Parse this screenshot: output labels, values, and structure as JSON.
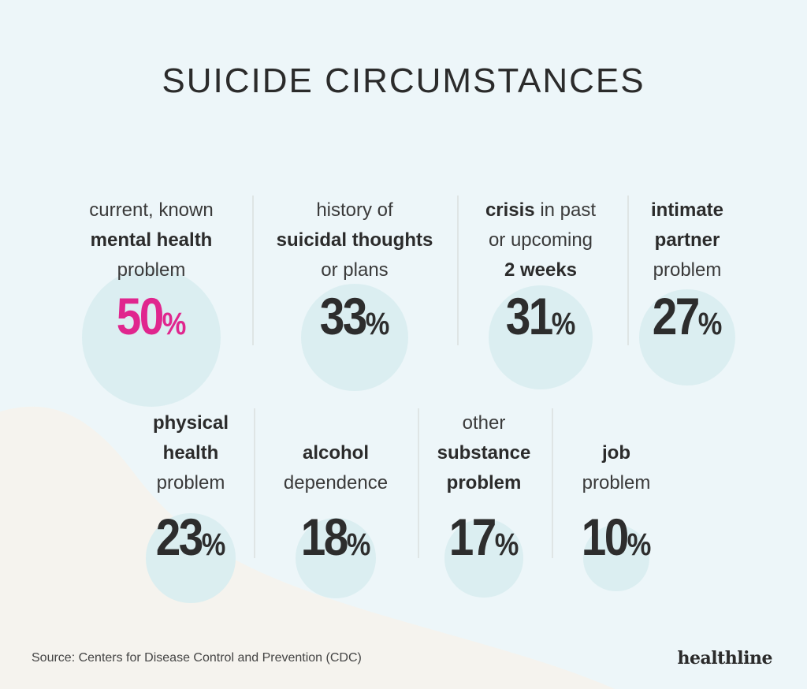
{
  "title": "SUICIDE CIRCUMSTANCES",
  "chart_data": {
    "type": "bar",
    "title": "SUICIDE CIRCUMSTANCES",
    "unit": "%",
    "highlight_color": "#e0268e",
    "text_color": "#2d2d2d",
    "bubble_color": "#d8edf0",
    "categories": [
      {
        "parts": [
          [
            "current, known",
            false
          ],
          [
            "mental health",
            true
          ],
          [
            "problem",
            false
          ]
        ]
      },
      {
        "parts": [
          [
            "history of",
            false
          ],
          [
            "suicidal thoughts",
            true
          ],
          [
            "or plans",
            false
          ]
        ]
      },
      {
        "parts": [
          [
            "crisis",
            true
          ],
          [
            " in past",
            false
          ],
          [
            "or upcoming",
            false
          ],
          [
            "2 weeks",
            true
          ]
        ]
      },
      {
        "parts": [
          [
            "intimate",
            true
          ],
          [
            "partner",
            true
          ],
          [
            "problem",
            false
          ]
        ]
      },
      {
        "parts": [
          [
            "physical",
            true
          ],
          [
            "health",
            true
          ],
          [
            "problem",
            false
          ]
        ]
      },
      {
        "parts": [
          [
            "alcohol",
            true
          ],
          [
            "dependence",
            false
          ]
        ]
      },
      {
        "parts": [
          [
            "other",
            false
          ],
          [
            "substance",
            true
          ],
          [
            "problem",
            true
          ]
        ]
      },
      {
        "parts": [
          [
            "job",
            true
          ],
          [
            "problem",
            false
          ]
        ]
      }
    ],
    "values": [
      50,
      33,
      31,
      27,
      23,
      18,
      17,
      10
    ],
    "highlight_index": 0
  },
  "source": "Source: Centers for Disease Control and Prevention (CDC)",
  "brand": "healthline"
}
